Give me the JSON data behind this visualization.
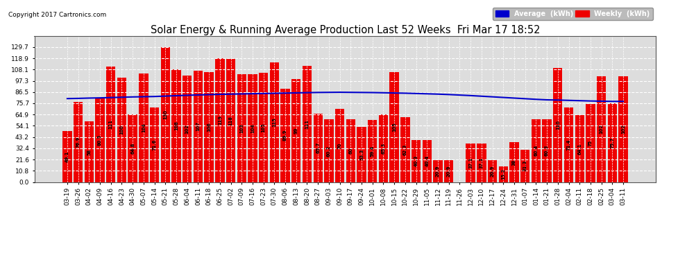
{
  "title": "Solar Energy & Running Average Production Last 52 Weeks  Fri Mar 17 18:52",
  "copyright": "Copyright 2017 Cartronics.com",
  "categories": [
    "03-19",
    "03-26",
    "04-02",
    "04-09",
    "04-16",
    "04-23",
    "04-30",
    "05-07",
    "05-14",
    "05-21",
    "05-28",
    "06-04",
    "06-11",
    "06-18",
    "06-25",
    "07-02",
    "07-09",
    "07-16",
    "07-23",
    "07-30",
    "08-06",
    "08-13",
    "08-20",
    "08-27",
    "09-03",
    "09-10",
    "09-17",
    "09-24",
    "10-01",
    "10-08",
    "10-15",
    "10-22",
    "10-29",
    "11-05",
    "11-12",
    "11-19",
    "11-26",
    "12-03",
    "12-10",
    "12-17",
    "12-24",
    "12-31",
    "01-07",
    "01-14",
    "01-21",
    "01-28",
    "02-04",
    "02-11",
    "02-18",
    "02-25",
    "03-04",
    "03-11"
  ],
  "weekly_values": [
    49.128,
    76.872,
    58.006,
    80.51,
    110.79,
    100.0,
    64.818,
    104.118,
    71.606,
    129.734,
    108.402,
    102.358,
    106.766,
    105.668,
    119.102,
    118.098,
    103.454,
    103.552,
    104.816,
    114.926,
    89.926,
    99.036,
    111.426,
    65.714,
    60.164,
    70.04,
    60.024,
    53.252,
    59.38,
    65.27,
    105.402,
    62.27,
    40.326,
    40.426,
    20.902,
    20.902,
    0.0,
    37.096,
    37.096,
    20.902,
    15.174,
    38.026,
    31.312,
    60.446,
    60.348,
    109.748,
    71.364,
    64.1,
    75.0,
    101.5,
    75.7,
    101.5
  ],
  "avg_values": [
    80.2,
    80.4,
    80.7,
    80.9,
    81.2,
    81.5,
    81.8,
    82.0,
    82.2,
    82.6,
    83.0,
    83.4,
    83.7,
    84.0,
    84.3,
    84.5,
    84.7,
    84.9,
    85.1,
    85.3,
    85.5,
    85.7,
    85.9,
    86.1,
    86.2,
    86.3,
    86.2,
    86.1,
    86.0,
    85.8,
    85.6,
    85.4,
    85.1,
    84.8,
    84.5,
    84.1,
    83.6,
    83.1,
    82.5,
    81.9,
    81.3,
    80.7,
    80.1,
    79.5,
    79.0,
    78.8,
    78.5,
    78.2,
    77.9,
    77.7,
    77.5,
    77.5
  ],
  "bar_color": "#EE0000",
  "avg_line_color": "#0000CC",
  "background_color": "#FFFFFF",
  "plot_bg_color": "#DDDDDD",
  "grid_color": "#FFFFFF",
  "yticks": [
    0.0,
    10.8,
    21.6,
    32.4,
    43.2,
    54.1,
    64.9,
    75.7,
    86.5,
    97.3,
    108.1,
    118.9,
    129.7
  ],
  "ylim": [
    0,
    140
  ],
  "bar_text_color": "#000000",
  "legend_avg_bg": "#0000CC",
  "legend_weekly_bg": "#EE0000"
}
